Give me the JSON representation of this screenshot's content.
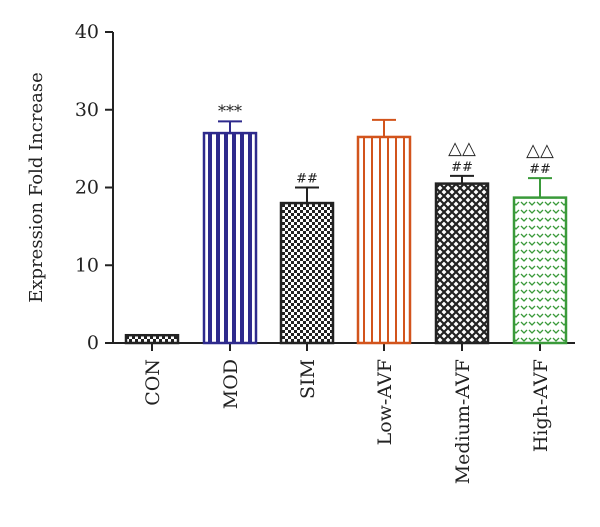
{
  "chart_data": {
    "type": "bar",
    "ylabel": "Expression Fold Increase",
    "xlabel": "",
    "ylim": [
      0,
      40
    ],
    "yticks": [
      0,
      10,
      20,
      30,
      40
    ],
    "ytick_labels": [
      "0",
      "10",
      "20",
      "30",
      "40"
    ],
    "categories": [
      "CON",
      "MOD",
      "SIM",
      "Low-AVF",
      "Medium-AVF",
      "High-AVF"
    ],
    "values": [
      1.0,
      27.0,
      18.0,
      26.5,
      20.5,
      18.7
    ],
    "errors": [
      0.0,
      1.5,
      2.0,
      2.2,
      1.0,
      2.5
    ],
    "significance": [
      {
        "category": "MOD",
        "labels": [
          "***"
        ]
      },
      {
        "category": "SIM",
        "labels": [
          "##"
        ]
      },
      {
        "category": "Medium-AVF",
        "labels": [
          "△△",
          "##"
        ]
      },
      {
        "category": "High-AVF",
        "labels": [
          "△△",
          "##"
        ]
      }
    ],
    "bar_styles": [
      {
        "category": "CON",
        "color": "#222222",
        "pattern": "checker"
      },
      {
        "category": "MOD",
        "color": "#2e2a8c",
        "pattern": "vertical-stripes"
      },
      {
        "category": "SIM",
        "color": "#222222",
        "pattern": "checker"
      },
      {
        "category": "Low-AVF",
        "color": "#d2541c",
        "pattern": "vertical-stripes"
      },
      {
        "category": "Medium-AVF",
        "color": "#222222",
        "pattern": "diagonal-crosshatch"
      },
      {
        "category": "High-AVF",
        "color": "#3a9a3a",
        "pattern": "chevron"
      }
    ],
    "grid": false,
    "legend": "none"
  }
}
